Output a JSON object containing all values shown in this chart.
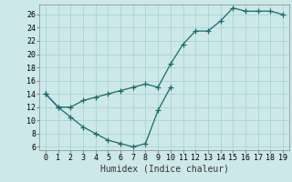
{
  "xlabel": "Humidex (Indice chaleur)",
  "bg_color": "#cce8e8",
  "grid_color": "#aad4d4",
  "line_color": "#1a6b6b",
  "marker": "+",
  "curve1_x": [
    0,
    1,
    2,
    3,
    4,
    5,
    6,
    7,
    8,
    9,
    10,
    11,
    12,
    13,
    14,
    15,
    16,
    17,
    18,
    19
  ],
  "curve1_y": [
    14,
    12,
    12,
    13,
    13.5,
    14,
    14.5,
    15,
    15.5,
    15,
    18.5,
    21.5,
    23.5,
    23.5,
    25,
    27,
    26.5,
    26.5,
    26.5,
    26
  ],
  "curve2_x": [
    0,
    1,
    2,
    3,
    4,
    5,
    6,
    7,
    8,
    9,
    10
  ],
  "curve2_y": [
    14,
    12,
    10.5,
    9,
    8,
    7,
    6.5,
    6,
    6.5,
    11.5,
    15
  ],
  "xlim": [
    -0.5,
    19.5
  ],
  "ylim": [
    5.5,
    27.5
  ],
  "xticks": [
    0,
    1,
    2,
    3,
    4,
    5,
    6,
    7,
    8,
    9,
    10,
    11,
    12,
    13,
    14,
    15,
    16,
    17,
    18,
    19
  ],
  "yticks": [
    6,
    8,
    10,
    12,
    14,
    16,
    18,
    20,
    22,
    24,
    26
  ],
  "xlabel_fontsize": 7,
  "tick_fontsize": 6,
  "linewidth": 0.9,
  "markersize": 4
}
